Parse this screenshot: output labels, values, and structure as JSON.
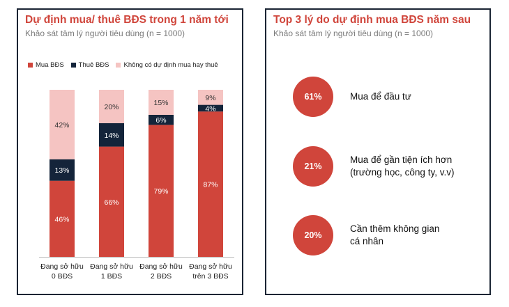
{
  "left_panel": {
    "title": "Dự định mua/ thuê BĐS trong 1 năm tới",
    "subtitle": "Khảo sát tâm lý người tiêu dùng (n = 1000)"
  },
  "right_panel": {
    "title": "Top 3 lý do dự định mua BĐS năm sau",
    "subtitle": "Khảo sát tâm lý người tiêu dùng (n = 1000)",
    "reasons": [
      {
        "percent": "61%",
        "line1": "Mua để đầu tư",
        "line2": ""
      },
      {
        "percent": "21%",
        "line1": "Mua để gần tiện ích hơn",
        "line2": "(trường học, công ty, v.v)"
      },
      {
        "percent": "20%",
        "line1": "Cần thêm không gian",
        "line2": "cá nhân"
      }
    ]
  },
  "colors": {
    "buy": "#d0453b",
    "rent": "#14243a",
    "none": "#f5c4c2",
    "border": "#1a2433"
  },
  "chart_data": {
    "type": "bar",
    "stacked": true,
    "categories": [
      [
        "Đang sở hữu",
        "0 BĐS"
      ],
      [
        "Đang sở hữu",
        "1 BĐS"
      ],
      [
        "Đang sở hữu",
        "2 BĐS"
      ],
      [
        "Đang sở hữu",
        "trên 3 BĐS"
      ]
    ],
    "series": [
      {
        "name": "Mua BĐS",
        "values": [
          46,
          66,
          79,
          87
        ],
        "labels": [
          "46%",
          "66%",
          "79%",
          "87%"
        ]
      },
      {
        "name": "Thuê BĐS",
        "values": [
          13,
          14,
          6,
          4
        ],
        "labels": [
          "13%",
          "14%",
          "6%",
          "4%"
        ]
      },
      {
        "name": "Không có dự định mua hay thuê",
        "values": [
          42,
          20,
          15,
          9
        ],
        "labels": [
          "42%",
          "20%",
          "15%",
          "9%"
        ]
      }
    ],
    "ylim": [
      0,
      100
    ],
    "legend_position": "top-left",
    "grid": false
  }
}
